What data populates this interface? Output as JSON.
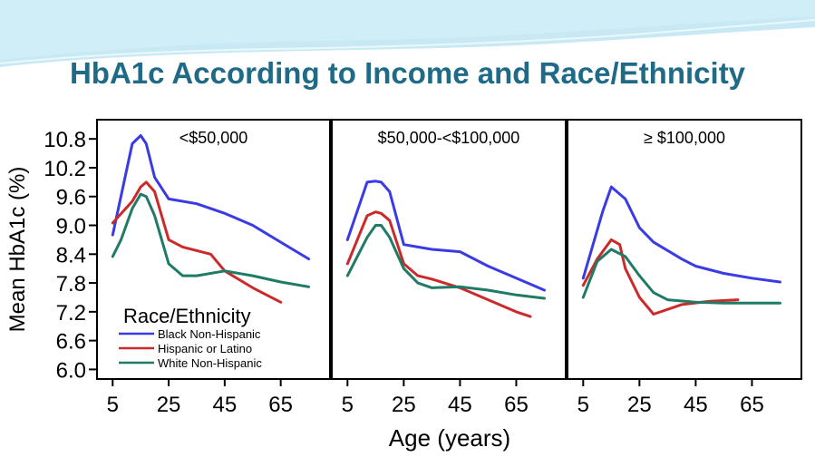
{
  "slide_title": "HbA1c According to Income and Race/Ethnicity",
  "colors": {
    "header_wave_light": "#cfeef7",
    "header_wave_mid": "#9ad7ea",
    "title": "#1f6a86",
    "axis": "#000000"
  },
  "chart_data": {
    "type": "line",
    "ylabel": "Mean HbA1c (%)",
    "xlabel": "Age (years)",
    "ylim": [
      5.8,
      11.2
    ],
    "xlim": [
      2,
      80
    ],
    "y_ticks": [
      "6.0",
      "6.6",
      "7.2",
      "7.8",
      "8.4",
      "9.0",
      "9.6",
      "10.2",
      "10.8"
    ],
    "y_tick_values": [
      6.0,
      6.6,
      7.2,
      7.8,
      8.4,
      9.0,
      9.6,
      10.2,
      10.8
    ],
    "x_ticks": [
      "5",
      "25",
      "45",
      "65"
    ],
    "x_tick_values": [
      5,
      25,
      45,
      65
    ],
    "grid": false,
    "legend": {
      "title": "Race/Ethnicity",
      "placement": "bottom-left of first panel",
      "entries": [
        "Black Non-Hispanic",
        "Hispanic or Latino",
        "White Non-Hispanic"
      ]
    },
    "series_colors": [
      "#3b3be6",
      "#cc2a2a",
      "#1f7a66"
    ],
    "panels": [
      {
        "title": "<$50,000",
        "series": [
          {
            "name": "Black Non-Hispanic",
            "x": [
              5,
              12,
              15,
              17,
              20,
              25,
              30,
              35,
              45,
              55,
              65,
              75
            ],
            "y": [
              8.8,
              10.7,
              10.87,
              10.7,
              10.0,
              9.55,
              9.5,
              9.45,
              9.25,
              9.0,
              8.65,
              8.3
            ]
          },
          {
            "name": "Hispanic or Latino",
            "x": [
              5,
              12,
              15,
              17,
              20,
              25,
              30,
              40,
              45,
              55,
              65
            ],
            "y": [
              9.05,
              9.5,
              9.8,
              9.9,
              9.7,
              8.7,
              8.55,
              8.4,
              8.05,
              7.7,
              7.4
            ]
          },
          {
            "name": "White Non-Hispanic",
            "x": [
              5,
              8,
              12,
              15,
              17,
              20,
              25,
              30,
              35,
              45,
              55,
              65,
              75
            ],
            "y": [
              8.35,
              8.7,
              9.35,
              9.65,
              9.6,
              9.2,
              8.2,
              7.95,
              7.95,
              8.05,
              7.95,
              7.82,
              7.72
            ]
          }
        ]
      },
      {
        "title": "$50,000-<$100,000",
        "series": [
          {
            "name": "Black Non-Hispanic",
            "x": [
              5,
              12,
              15,
              17,
              20,
              25,
              30,
              35,
              45,
              55,
              65,
              75
            ],
            "y": [
              8.7,
              9.9,
              9.92,
              9.9,
              9.7,
              8.6,
              8.55,
              8.5,
              8.45,
              8.15,
              7.9,
              7.65
            ]
          },
          {
            "name": "Hispanic or Latino",
            "x": [
              5,
              12,
              15,
              17,
              20,
              25,
              30,
              35,
              45,
              55,
              65,
              70
            ],
            "y": [
              8.2,
              9.2,
              9.28,
              9.25,
              9.1,
              8.2,
              7.95,
              7.88,
              7.7,
              7.45,
              7.2,
              7.1
            ]
          },
          {
            "name": "White Non-Hispanic",
            "x": [
              5,
              12,
              15,
              17,
              20,
              25,
              30,
              35,
              45,
              55,
              65,
              75
            ],
            "y": [
              7.95,
              8.75,
              9.0,
              9.0,
              8.75,
              8.1,
              7.8,
              7.7,
              7.72,
              7.65,
              7.55,
              7.48
            ]
          }
        ]
      },
      {
        "title": "≥ $100,000",
        "series": [
          {
            "name": "Black Non-Hispanic",
            "x": [
              5,
              12,
              15,
              20,
              25,
              30,
              40,
              45,
              55,
              65,
              75
            ],
            "y": [
              7.9,
              9.3,
              9.8,
              9.55,
              8.95,
              8.65,
              8.3,
              8.15,
              8.0,
              7.9,
              7.82
            ]
          },
          {
            "name": "Hispanic or Latino",
            "x": [
              5,
              10,
              15,
              18,
              20,
              25,
              30,
              40,
              50,
              60
            ],
            "y": [
              7.75,
              8.3,
              8.7,
              8.6,
              8.1,
              7.5,
              7.15,
              7.35,
              7.42,
              7.45
            ]
          },
          {
            "name": "White Non-Hispanic",
            "x": [
              5,
              10,
              15,
              20,
              25,
              30,
              35,
              45,
              55,
              65,
              75
            ],
            "y": [
              7.5,
              8.25,
              8.5,
              8.35,
              7.95,
              7.6,
              7.45,
              7.4,
              7.38,
              7.38,
              7.38
            ]
          }
        ]
      }
    ]
  }
}
